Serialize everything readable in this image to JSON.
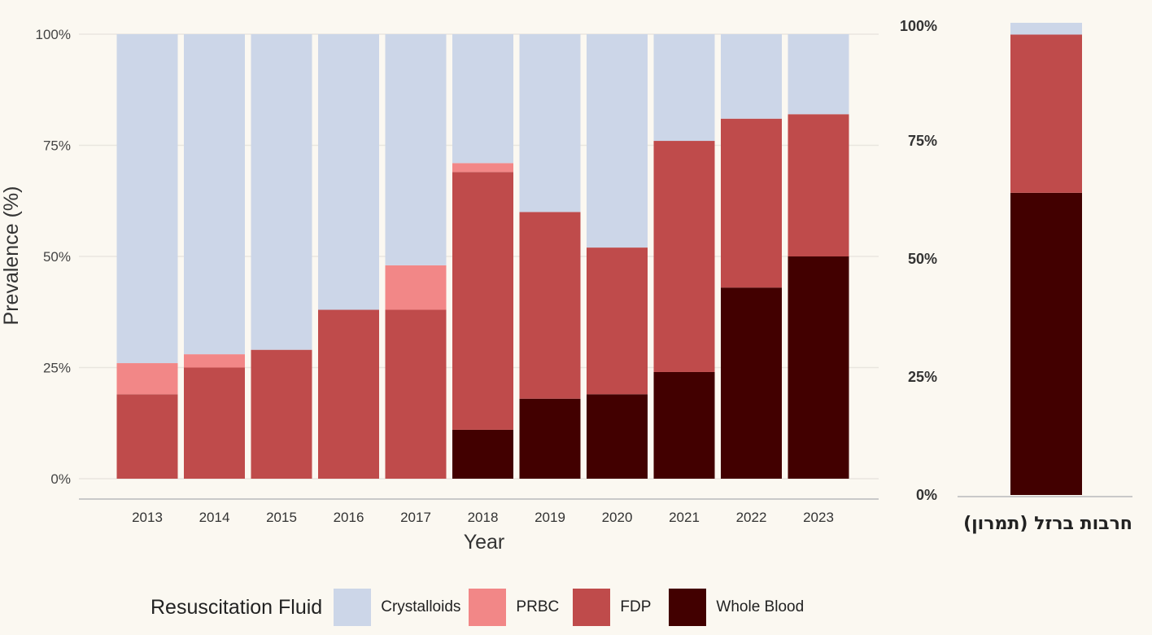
{
  "chart_data": [
    {
      "type": "bar",
      "stacked": true,
      "categories": [
        "2013",
        "2014",
        "2015",
        "2016",
        "2017",
        "2018",
        "2019",
        "2020",
        "2021",
        "2022",
        "2023"
      ],
      "series": [
        {
          "name": "Whole Blood",
          "color": "#420000",
          "values": [
            0,
            0,
            0,
            0,
            0,
            11,
            18,
            19,
            24,
            43,
            50
          ]
        },
        {
          "name": "FDP",
          "color": "#bf4b4b",
          "values": [
            19,
            25,
            29,
            38,
            38,
            58,
            42,
            33,
            52,
            38,
            32
          ]
        },
        {
          "name": "PRBC",
          "color": "#f28787",
          "values": [
            7,
            3,
            0,
            0,
            10,
            2,
            0,
            0,
            0,
            0,
            0
          ]
        },
        {
          "name": "Crystalloids",
          "color": "#ccd6e8",
          "values": [
            74,
            72,
            71,
            62,
            52,
            29,
            40,
            48,
            24,
            19,
            18
          ]
        }
      ],
      "xlabel": "Year",
      "ylabel": "Prevalence (%)",
      "ylim": [
        0,
        100
      ],
      "yticks": [
        "0%",
        "25%",
        "50%",
        "75%",
        "100%"
      ],
      "grid": true,
      "legend": {
        "title": "Resuscitation Fluid",
        "position": "bottom",
        "entries": [
          "Crystalloids",
          "PRBC",
          "FDP",
          "Whole Blood"
        ]
      }
    },
    {
      "type": "bar",
      "stacked": true,
      "categories": [
        "חרבות ברזל (תמרון)"
      ],
      "series": [
        {
          "name": "Whole Blood",
          "color": "#420000",
          "values": [
            64
          ]
        },
        {
          "name": "FDP",
          "color": "#bf4b4b",
          "values": [
            33.5
          ]
        },
        {
          "name": "Crystalloids",
          "color": "#ccd6e8",
          "values": [
            2.5
          ]
        }
      ],
      "ylim": [
        0,
        100
      ],
      "yticks": [
        "0%",
        "25%",
        "50%",
        "75%",
        "100%"
      ]
    }
  ]
}
